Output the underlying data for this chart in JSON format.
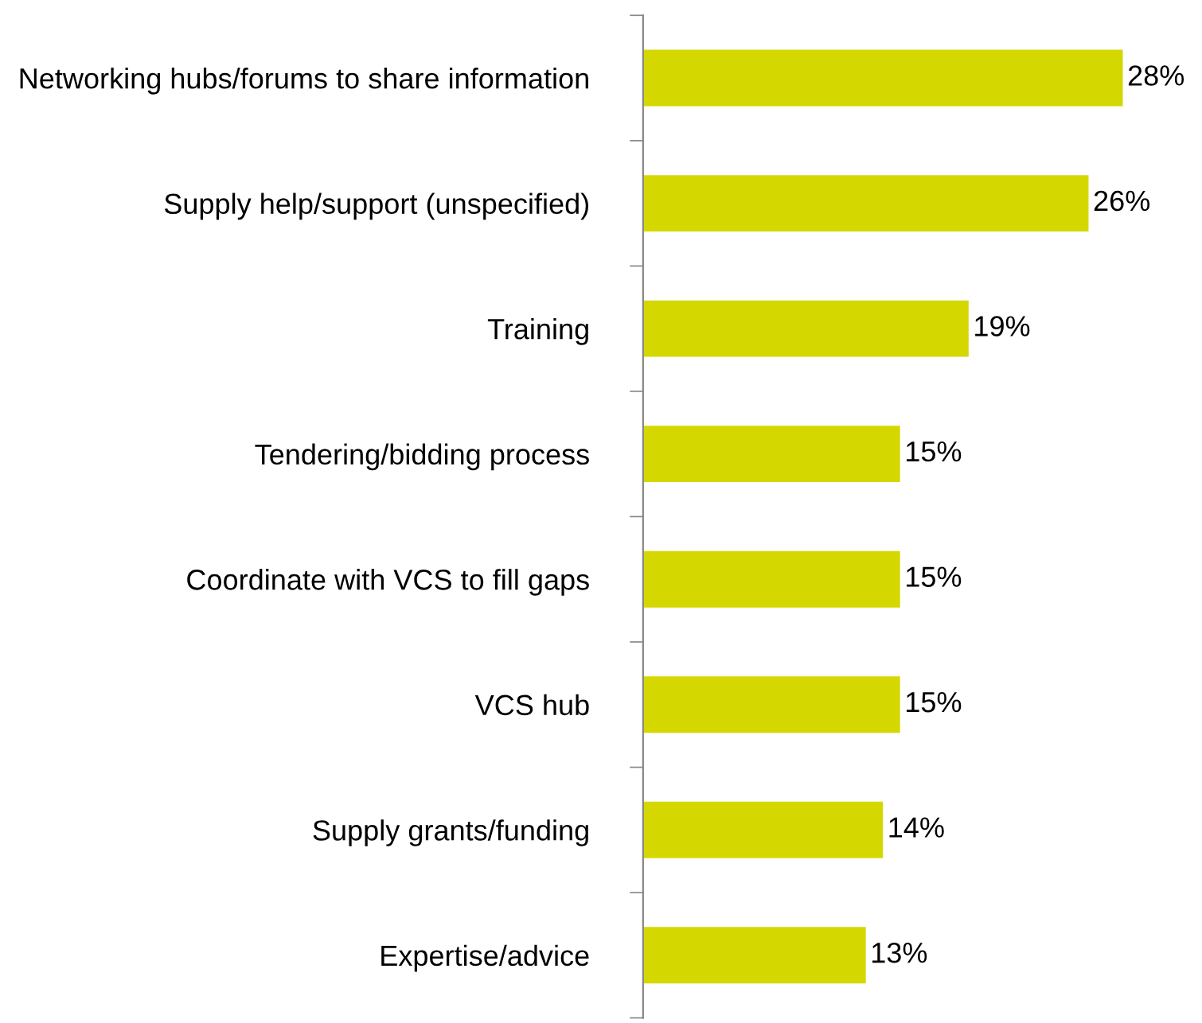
{
  "chart_data": {
    "type": "bar",
    "orientation": "horizontal",
    "categories": [
      "Networking hubs/forums to share information",
      "Supply help/support (unspecified)",
      "Training",
      "Tendering/bidding process",
      "Coordinate with VCS to fill gaps",
      "VCS hub",
      "Supply grants/funding",
      "Expertise/advice"
    ],
    "values": [
      28,
      26,
      19,
      15,
      15,
      15,
      14,
      13
    ],
    "value_labels": [
      "28%",
      "26%",
      "19%",
      "15%",
      "15%",
      "15%",
      "14%",
      "13%"
    ],
    "color": "#d4d800",
    "grid": false,
    "legend": false
  }
}
